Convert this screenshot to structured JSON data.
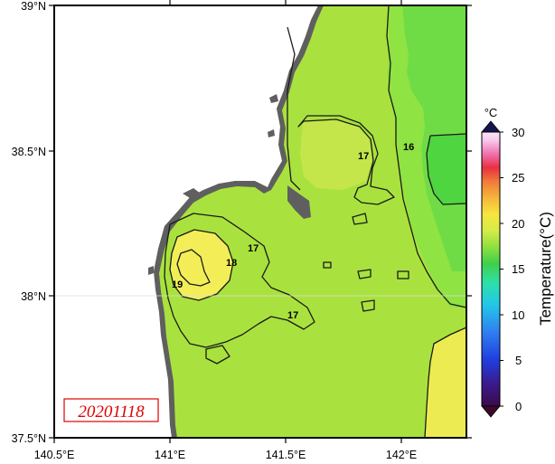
{
  "map": {
    "lat_labels": [
      "39°N",
      "38.5°N",
      "38°N",
      "37.5°N"
    ],
    "lon_labels": [
      "140.5°E",
      "141°E",
      "141.5°E",
      "142°E"
    ],
    "contour_labels": [
      "19",
      "18",
      "17",
      "17",
      "16",
      "17"
    ],
    "date_stamp": "20201118"
  },
  "colorbar": {
    "unit": "°C",
    "title": "Temperature(°C)",
    "ticks": [
      "30",
      "25",
      "20",
      "15",
      "10",
      "5",
      "0"
    ],
    "range": [
      0,
      30
    ]
  },
  "colors": {
    "land": "#5f5f5f",
    "sea_base": "#a9e23e",
    "warm_core": "#f5ef55",
    "cool_band": "#5fd84a",
    "frame": "#000000",
    "date_text": "#e00000"
  }
}
